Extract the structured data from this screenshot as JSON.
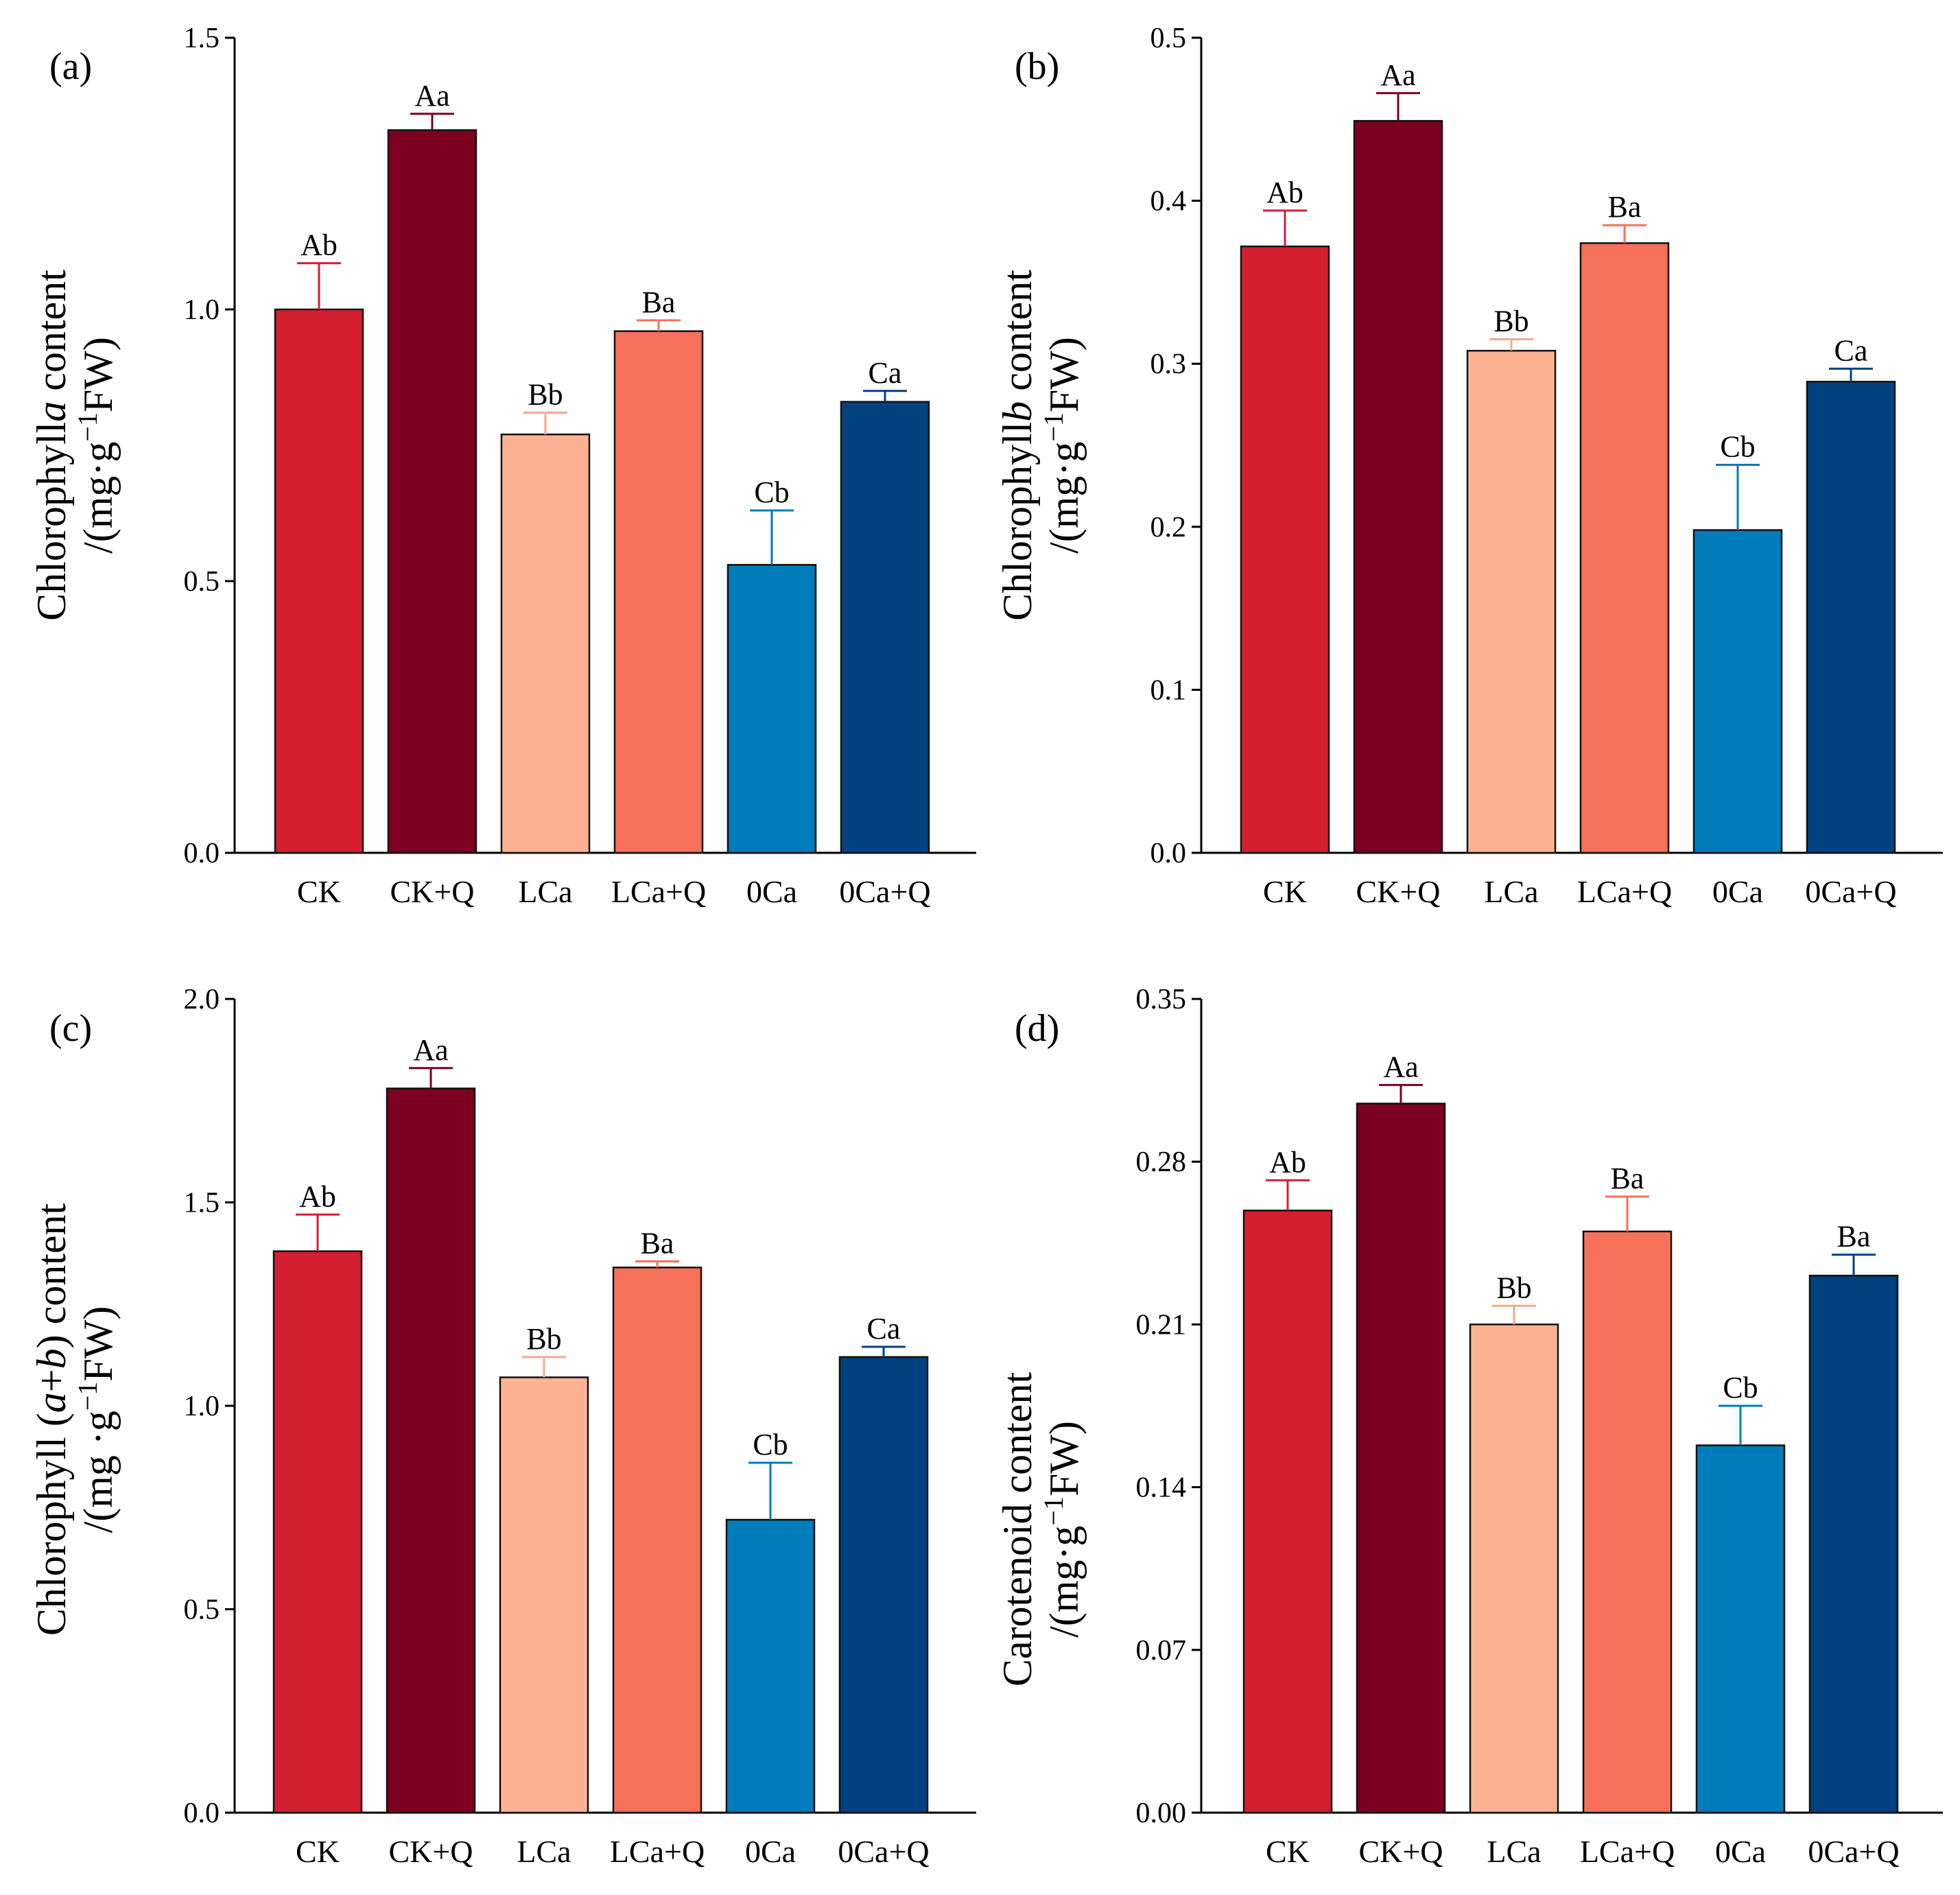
{
  "figure": {
    "categories": [
      "CK",
      "CK+Q",
      "LCa",
      "LCa+Q",
      "0Ca",
      "0Ca+Q"
    ],
    "bar_colors": [
      "#D41F30",
      "#7D0020",
      "#FDB294",
      "#F7705A",
      "#007CBA",
      "#004280"
    ],
    "error_colors": [
      "#D41F30",
      "#7D0020",
      "#F5A98D",
      "#F7705A",
      "#007CBA",
      "#004280"
    ]
  },
  "chart_data": [
    {
      "type": "bar",
      "panel": "(a)",
      "ylabel": "Chlorophyll a content /(mg·g⁻¹FW)",
      "ylabel_parts": {
        "pre": "Chlorophyll",
        "it": "a",
        "post": " content",
        "line2a": "/(mg·g",
        "sup": "−1",
        "line2b": "FW)"
      },
      "ylim": [
        0,
        1.5
      ],
      "yticks": [
        "0.0",
        "0.5",
        "1.0",
        "1.5"
      ],
      "ytick_values": [
        0,
        0.5,
        1.0,
        1.5
      ],
      "values": [
        1.0,
        1.33,
        0.77,
        0.96,
        0.53,
        0.83
      ],
      "errors": [
        0.085,
        0.03,
        0.04,
        0.02,
        0.1,
        0.02
      ],
      "labels": [
        "Ab",
        "Aa",
        "Bb",
        "Ba",
        "Cb",
        "Ca"
      ]
    },
    {
      "type": "bar",
      "panel": "(b)",
      "ylabel": "Chlorophyll b content /(mg·g⁻¹FW)",
      "ylabel_parts": {
        "pre": "Chlorophyll",
        "it": "b",
        "post": " content",
        "line2a": "/(mg·g",
        "sup": "−1",
        "line2b": "FW)"
      },
      "ylim": [
        0,
        0.5
      ],
      "yticks": [
        "0.0",
        "0.1",
        "0.2",
        "0.3",
        "0.4",
        "0.5"
      ],
      "ytick_values": [
        0,
        0.1,
        0.2,
        0.3,
        0.4,
        0.5
      ],
      "values": [
        0.372,
        0.449,
        0.308,
        0.374,
        0.198,
        0.289
      ],
      "errors": [
        0.022,
        0.017,
        0.007,
        0.011,
        0.04,
        0.008
      ],
      "labels": [
        "Ab",
        "Aa",
        "Bb",
        "Ba",
        "Cb",
        "Ca"
      ]
    },
    {
      "type": "bar",
      "panel": "(c)",
      "ylabel": "Chlorophyll (a+b) content /(mg ·g⁻¹FW)",
      "ylabel_parts": {
        "pre": "Chlorophyll (",
        "it": "a",
        "mid": "+",
        "it2": "b",
        "post": ") content",
        "line2a": "/(mg ·g",
        "sup": "−1",
        "line2b": "FW)"
      },
      "ylim": [
        0,
        2.0
      ],
      "yticks": [
        "0.0",
        "0.5",
        "1.0",
        "1.5",
        "2.0"
      ],
      "ytick_values": [
        0,
        0.5,
        1.0,
        1.5,
        2.0
      ],
      "values": [
        1.38,
        1.78,
        1.07,
        1.34,
        0.72,
        1.12
      ],
      "errors": [
        0.09,
        0.05,
        0.05,
        0.015,
        0.14,
        0.025
      ],
      "labels": [
        "Ab",
        "Aa",
        "Bb",
        "Ba",
        "Cb",
        "Ca"
      ]
    },
    {
      "type": "bar",
      "panel": "(d)",
      "ylabel": "Carotenoid content /(mg·g⁻¹FW)",
      "ylabel_parts": {
        "pre": "Carotenoid content",
        "it": "",
        "post": "",
        "line2a": "/(mg·g",
        "sup": "−1",
        "line2b": "FW)"
      },
      "ylim": [
        0,
        0.35
      ],
      "yticks": [
        "0.00",
        "0.07",
        "0.14",
        "0.21",
        "0.28",
        "0.35"
      ],
      "ytick_values": [
        0,
        0.07,
        0.14,
        0.21,
        0.28,
        0.35
      ],
      "values": [
        0.259,
        0.305,
        0.21,
        0.25,
        0.158,
        0.231
      ],
      "errors": [
        0.013,
        0.008,
        0.008,
        0.015,
        0.017,
        0.009
      ],
      "labels": [
        "Ab",
        "Aa",
        "Bb",
        "Ba",
        "Cb",
        "Ba"
      ]
    }
  ]
}
